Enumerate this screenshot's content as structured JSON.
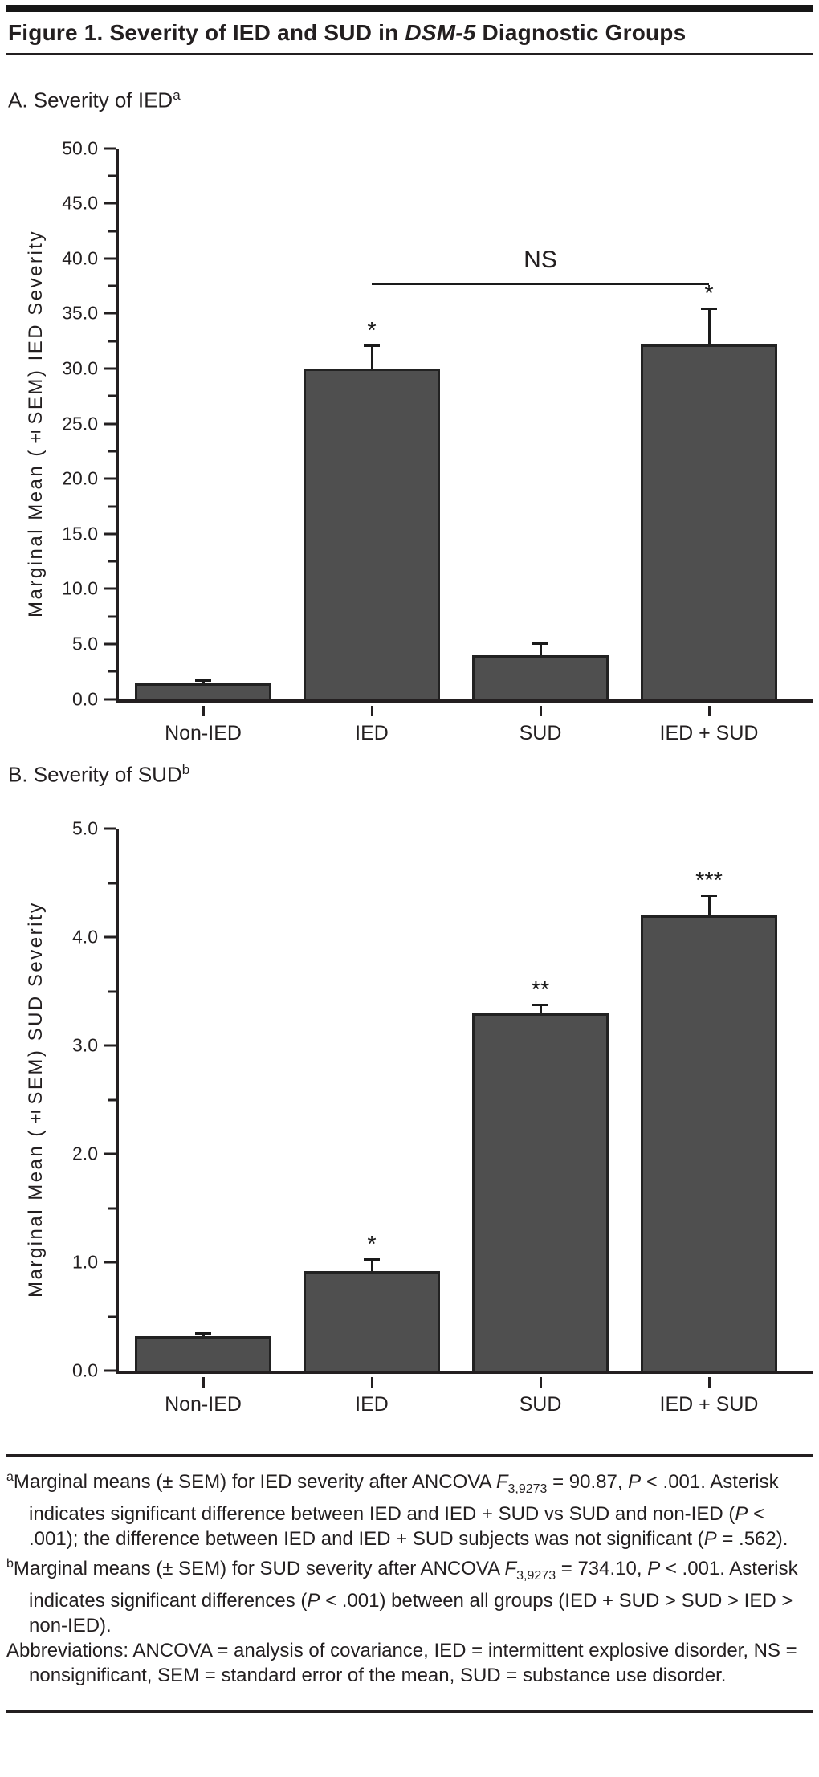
{
  "figure": {
    "title_prefix": "Figure 1. Severity of IED and SUD in ",
    "title_italic": "DSM-5",
    "title_suffix": " Diagnostic Groups"
  },
  "chart_data": [
    {
      "type": "bar",
      "panel_label": "A. Severity of IED",
      "panel_note_mark": "a",
      "categories": [
        "Non-IED",
        "IED",
        "SUD",
        "IED + SUD"
      ],
      "values": [
        1.4,
        30.0,
        4.0,
        32.2
      ],
      "sem": [
        0.3,
        2.1,
        1.1,
        3.3
      ],
      "sig_labels": [
        "",
        "*",
        "",
        "*"
      ],
      "ylabel": "Marginal Mean (±SEM) IED Severity",
      "xlabel": "",
      "ylim": [
        0,
        50
      ],
      "ytick_major": 5.0,
      "ytick_minor": 2.5,
      "grid": "off",
      "ns_bracket": {
        "label": "NS",
        "from_index": 1,
        "to_index": 3,
        "y_value": 37.8
      }
    },
    {
      "type": "bar",
      "panel_label": "B. Severity of SUD",
      "panel_note_mark": "b",
      "categories": [
        "Non-IED",
        "IED",
        "SUD",
        "IED + SUD"
      ],
      "values": [
        0.32,
        0.92,
        3.3,
        4.2
      ],
      "sem": [
        0.03,
        0.11,
        0.08,
        0.19
      ],
      "sig_labels": [
        "",
        "*",
        "**",
        "***"
      ],
      "ylabel": "Marginal Mean (±SEM) SUD Severity",
      "xlabel": "",
      "ylim": [
        0,
        5
      ],
      "ytick_major": 1.0,
      "ytick_minor": 0.5,
      "grid": "off",
      "ns_bracket": null
    }
  ],
  "footnotes": {
    "a": {
      "mark": "a",
      "s1": "Marginal means (± SEM) for IED severity after ANCOVA ",
      "f": "F",
      "fsub": "3,9273",
      "s2": " = 90.87, ",
      "p1": "P",
      "s3": " < .001. Asterisk indicates significant difference between IED and IED + SUD vs SUD and non-IED (",
      "p2": "P",
      "s4": " < .001); the difference between IED and IED + SUD subjects was not significant (",
      "p3": "P",
      "s5": " = .562)."
    },
    "b": {
      "mark": "b",
      "s1": "Marginal means (± SEM) for SUD severity after ANCOVA ",
      "f": "F",
      "fsub": "3,9273",
      "s2": " = 734.10, ",
      "p1": "P",
      "s3": " < .001. Asterisk indicates significant differences (",
      "p2": "P",
      "s4": " < .001) between all groups (IED + SUD > SUD > IED > non-IED)."
    },
    "abbr": "Abbreviations: ANCOVA = analysis of covariance, IED = intermittent explosive disorder, NS = nonsignificant, SEM = standard error of the mean, SUD = substance use disorder."
  },
  "colors": {
    "bar_fill": "#4f4f4f",
    "bar_border": "#222222",
    "text": "#231f20",
    "axis": "#231f20"
  }
}
